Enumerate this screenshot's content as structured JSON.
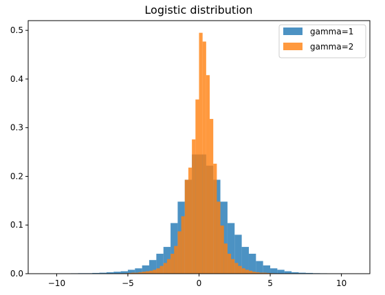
{
  "chart_data": {
    "type": "bar",
    "title": "Logistic distribution",
    "xlabel": "",
    "ylabel": "",
    "xlim": [
      -12,
      12
    ],
    "ylim": [
      0,
      0.52
    ],
    "xticks": [
      -10,
      -5,
      0,
      5,
      10
    ],
    "yticks": [
      0.0,
      0.1,
      0.2,
      0.3,
      0.4,
      0.5
    ],
    "xtick_labels": [
      "−10",
      "−5",
      "0",
      "5",
      "10"
    ],
    "ytick_labels": [
      "0.0",
      "0.1",
      "0.2",
      "0.3",
      "0.4",
      "0.5"
    ],
    "grid": false,
    "legend_position": "top-right",
    "series": [
      {
        "name": "gamma=1",
        "color": "#1f77b4",
        "opacity": 0.8,
        "bins": [
          {
            "x0": -11.0,
            "x1": -10.5,
            "y": 0.0005
          },
          {
            "x0": -10.5,
            "x1": -10.0,
            "y": 0.0005
          },
          {
            "x0": -10.0,
            "x1": -9.5,
            "y": 0.0005
          },
          {
            "x0": -9.5,
            "x1": -9.0,
            "y": 0.0005
          },
          {
            "x0": -9.0,
            "x1": -8.5,
            "y": 0.0008
          },
          {
            "x0": -8.5,
            "x1": -8.0,
            "y": 0.001
          },
          {
            "x0": -8.0,
            "x1": -7.5,
            "y": 0.001
          },
          {
            "x0": -7.5,
            "x1": -7.0,
            "y": 0.0015
          },
          {
            "x0": -7.0,
            "x1": -6.5,
            "y": 0.002
          },
          {
            "x0": -6.5,
            "x1": -6.0,
            "y": 0.003
          },
          {
            "x0": -6.0,
            "x1": -5.5,
            "y": 0.004
          },
          {
            "x0": -5.5,
            "x1": -5.0,
            "y": 0.005
          },
          {
            "x0": -5.0,
            "x1": -4.5,
            "y": 0.008
          },
          {
            "x0": -4.5,
            "x1": -4.0,
            "y": 0.011
          },
          {
            "x0": -4.0,
            "x1": -3.5,
            "y": 0.017
          },
          {
            "x0": -3.5,
            "x1": -3.0,
            "y": 0.028
          },
          {
            "x0": -3.0,
            "x1": -2.5,
            "y": 0.041
          },
          {
            "x0": -2.5,
            "x1": -2.0,
            "y": 0.055
          },
          {
            "x0": -2.0,
            "x1": -1.5,
            "y": 0.104
          },
          {
            "x0": -1.5,
            "x1": -1.0,
            "y": 0.148
          },
          {
            "x0": -1.0,
            "x1": -0.5,
            "y": 0.193
          },
          {
            "x0": -0.5,
            "x1": 0.0,
            "y": 0.245
          },
          {
            "x0": 0.0,
            "x1": 0.5,
            "y": 0.245
          },
          {
            "x0": 0.5,
            "x1": 1.0,
            "y": 0.222
          },
          {
            "x0": 1.0,
            "x1": 1.5,
            "y": 0.193
          },
          {
            "x0": 1.5,
            "x1": 2.0,
            "y": 0.148
          },
          {
            "x0": 2.0,
            "x1": 2.5,
            "y": 0.104
          },
          {
            "x0": 2.5,
            "x1": 3.0,
            "y": 0.08
          },
          {
            "x0": 3.0,
            "x1": 3.5,
            "y": 0.055
          },
          {
            "x0": 3.5,
            "x1": 4.0,
            "y": 0.041
          },
          {
            "x0": 4.0,
            "x1": 4.5,
            "y": 0.026
          },
          {
            "x0": 4.5,
            "x1": 5.0,
            "y": 0.017
          },
          {
            "x0": 5.0,
            "x1": 5.5,
            "y": 0.011
          },
          {
            "x0": 5.5,
            "x1": 6.0,
            "y": 0.008
          },
          {
            "x0": 6.0,
            "x1": 6.5,
            "y": 0.005
          },
          {
            "x0": 6.5,
            "x1": 7.0,
            "y": 0.003
          },
          {
            "x0": 7.0,
            "x1": 7.5,
            "y": 0.002
          },
          {
            "x0": 7.5,
            "x1": 8.0,
            "y": 0.0015
          },
          {
            "x0": 8.0,
            "x1": 8.5,
            "y": 0.001
          },
          {
            "x0": 8.5,
            "x1": 9.0,
            "y": 0.0008
          },
          {
            "x0": 9.0,
            "x1": 9.5,
            "y": 0.0005
          },
          {
            "x0": 9.5,
            "x1": 10.0,
            "y": 0.0005
          },
          {
            "x0": 10.0,
            "x1": 10.5,
            "y": 0.0005
          },
          {
            "x0": 10.5,
            "x1": 11.0,
            "y": 0.0005
          }
        ]
      },
      {
        "name": "gamma=2",
        "color": "#ff7f0e",
        "opacity": 0.8,
        "bins": [
          {
            "x0": -5.5,
            "x1": -5.25,
            "y": 0.0008
          },
          {
            "x0": -5.25,
            "x1": -5.0,
            "y": 0.001
          },
          {
            "x0": -5.0,
            "x1": -4.75,
            "y": 0.0015
          },
          {
            "x0": -4.75,
            "x1": -4.5,
            "y": 0.002
          },
          {
            "x0": -4.5,
            "x1": -4.25,
            "y": 0.002
          },
          {
            "x0": -4.25,
            "x1": -4.0,
            "y": 0.003
          },
          {
            "x0": -4.0,
            "x1": -3.75,
            "y": 0.004
          },
          {
            "x0": -3.75,
            "x1": -3.5,
            "y": 0.005
          },
          {
            "x0": -3.5,
            "x1": -3.25,
            "y": 0.006
          },
          {
            "x0": -3.25,
            "x1": -3.0,
            "y": 0.008
          },
          {
            "x0": -3.0,
            "x1": -2.75,
            "y": 0.011
          },
          {
            "x0": -2.75,
            "x1": -2.5,
            "y": 0.016
          },
          {
            "x0": -2.5,
            "x1": -2.25,
            "y": 0.022
          },
          {
            "x0": -2.25,
            "x1": -2.0,
            "y": 0.03
          },
          {
            "x0": -2.0,
            "x1": -1.75,
            "y": 0.041
          },
          {
            "x0": -1.75,
            "x1": -1.5,
            "y": 0.057
          },
          {
            "x0": -1.5,
            "x1": -1.25,
            "y": 0.087
          },
          {
            "x0": -1.25,
            "x1": -1.0,
            "y": 0.118
          },
          {
            "x0": -1.0,
            "x1": -0.75,
            "y": 0.193
          },
          {
            "x0": -0.75,
            "x1": -0.5,
            "y": 0.218
          },
          {
            "x0": -0.5,
            "x1": -0.25,
            "y": 0.276
          },
          {
            "x0": -0.25,
            "x1": 0.0,
            "y": 0.358
          },
          {
            "x0": 0.0,
            "x1": 0.25,
            "y": 0.495
          },
          {
            "x0": 0.25,
            "x1": 0.5,
            "y": 0.477
          },
          {
            "x0": 0.5,
            "x1": 0.75,
            "y": 0.408
          },
          {
            "x0": 0.75,
            "x1": 1.0,
            "y": 0.318
          },
          {
            "x0": 1.0,
            "x1": 1.25,
            "y": 0.226
          },
          {
            "x0": 1.25,
            "x1": 1.5,
            "y": 0.148
          },
          {
            "x0": 1.5,
            "x1": 1.75,
            "y": 0.099
          },
          {
            "x0": 1.75,
            "x1": 2.0,
            "y": 0.062
          },
          {
            "x0": 2.0,
            "x1": 2.25,
            "y": 0.041
          },
          {
            "x0": 2.25,
            "x1": 2.5,
            "y": 0.03
          },
          {
            "x0": 2.5,
            "x1": 2.75,
            "y": 0.022
          },
          {
            "x0": 2.75,
            "x1": 3.0,
            "y": 0.016
          },
          {
            "x0": 3.0,
            "x1": 3.25,
            "y": 0.011
          },
          {
            "x0": 3.25,
            "x1": 3.5,
            "y": 0.008
          },
          {
            "x0": 3.5,
            "x1": 3.75,
            "y": 0.006
          },
          {
            "x0": 3.75,
            "x1": 4.0,
            "y": 0.004
          },
          {
            "x0": 4.0,
            "x1": 4.25,
            "y": 0.003
          },
          {
            "x0": 4.25,
            "x1": 4.5,
            "y": 0.002
          },
          {
            "x0": 4.5,
            "x1": 4.75,
            "y": 0.002
          },
          {
            "x0": 4.75,
            "x1": 5.0,
            "y": 0.0015
          },
          {
            "x0": 5.0,
            "x1": 5.25,
            "y": 0.001
          },
          {
            "x0": 5.25,
            "x1": 5.5,
            "y": 0.0008
          }
        ]
      }
    ]
  }
}
